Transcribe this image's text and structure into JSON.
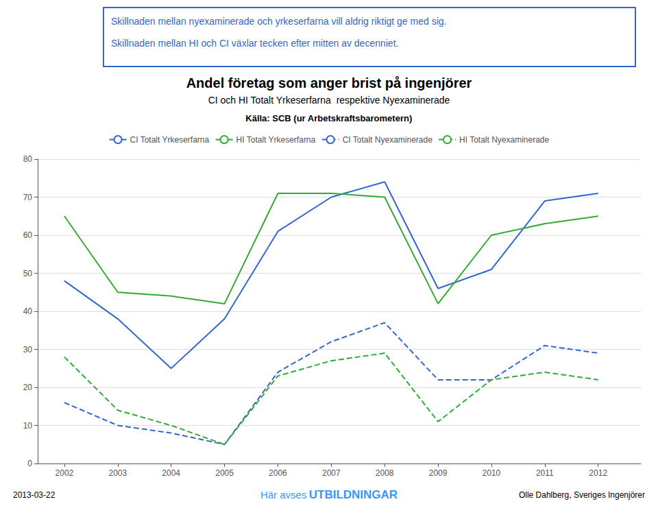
{
  "chart_data": {
    "type": "line",
    "title": "Andel företag som anger brist på ingenjörer",
    "subtitle": "CI och HI Totalt Yrkeserfarna  respektive Nyexaminerade",
    "annotations": [
      "Skillnaden mellan nyexaminerade och yrkeserfarna vill aldrig riktigt ge med sig.",
      "Skillnaden mellan HI och CI växlar tecken efter mitten av decenniet.",
      "Källa: SCB (ur Arbetskraftsbarometern)",
      "2013-03-22",
      "Här avses",
      "UTBILDNINGAR",
      "Olle Dahlberg, Sveriges Ingenjörer"
    ],
    "x": [
      2002,
      2003,
      2004,
      2005,
      2006,
      2007,
      2008,
      2009,
      2010,
      2011,
      2012
    ],
    "xlim": [
      2001.5,
      2012.8
    ],
    "xticks": [
      2002,
      2003,
      2004,
      2005,
      2006,
      2007,
      2008,
      2009,
      2010,
      2011,
      2012
    ],
    "ylim": [
      0,
      80
    ],
    "yticks": [
      0,
      10,
      20,
      30,
      40,
      50,
      60,
      70,
      80
    ],
    "grid": true,
    "legend": "top",
    "series": [
      {
        "name": "CI Totalt Yrkeserfarna",
        "color": "#3366CC",
        "line_style": "solid",
        "values": [
          48,
          38,
          25,
          38,
          61,
          70,
          74,
          46,
          51,
          69,
          71
        ]
      },
      {
        "name": "HI Totalt Yrkeserfarna",
        "color": "#33AA33",
        "line_style": "solid",
        "values": [
          65,
          45,
          44,
          42,
          71,
          71,
          70,
          42,
          60,
          63,
          65
        ]
      },
      {
        "name": "CI Totalt Nyexaminerade",
        "color": "#3366CC",
        "line_style": "dashed",
        "values": [
          16,
          10,
          8,
          5,
          24,
          32,
          37,
          22,
          22,
          31,
          29
        ]
      },
      {
        "name": "HI Totalt Nyexaminerade",
        "color": "#33AA33",
        "line_style": "dashed",
        "values": [
          28,
          14,
          10,
          5,
          23,
          27,
          29,
          11,
          22,
          24,
          22
        ]
      }
    ]
  }
}
